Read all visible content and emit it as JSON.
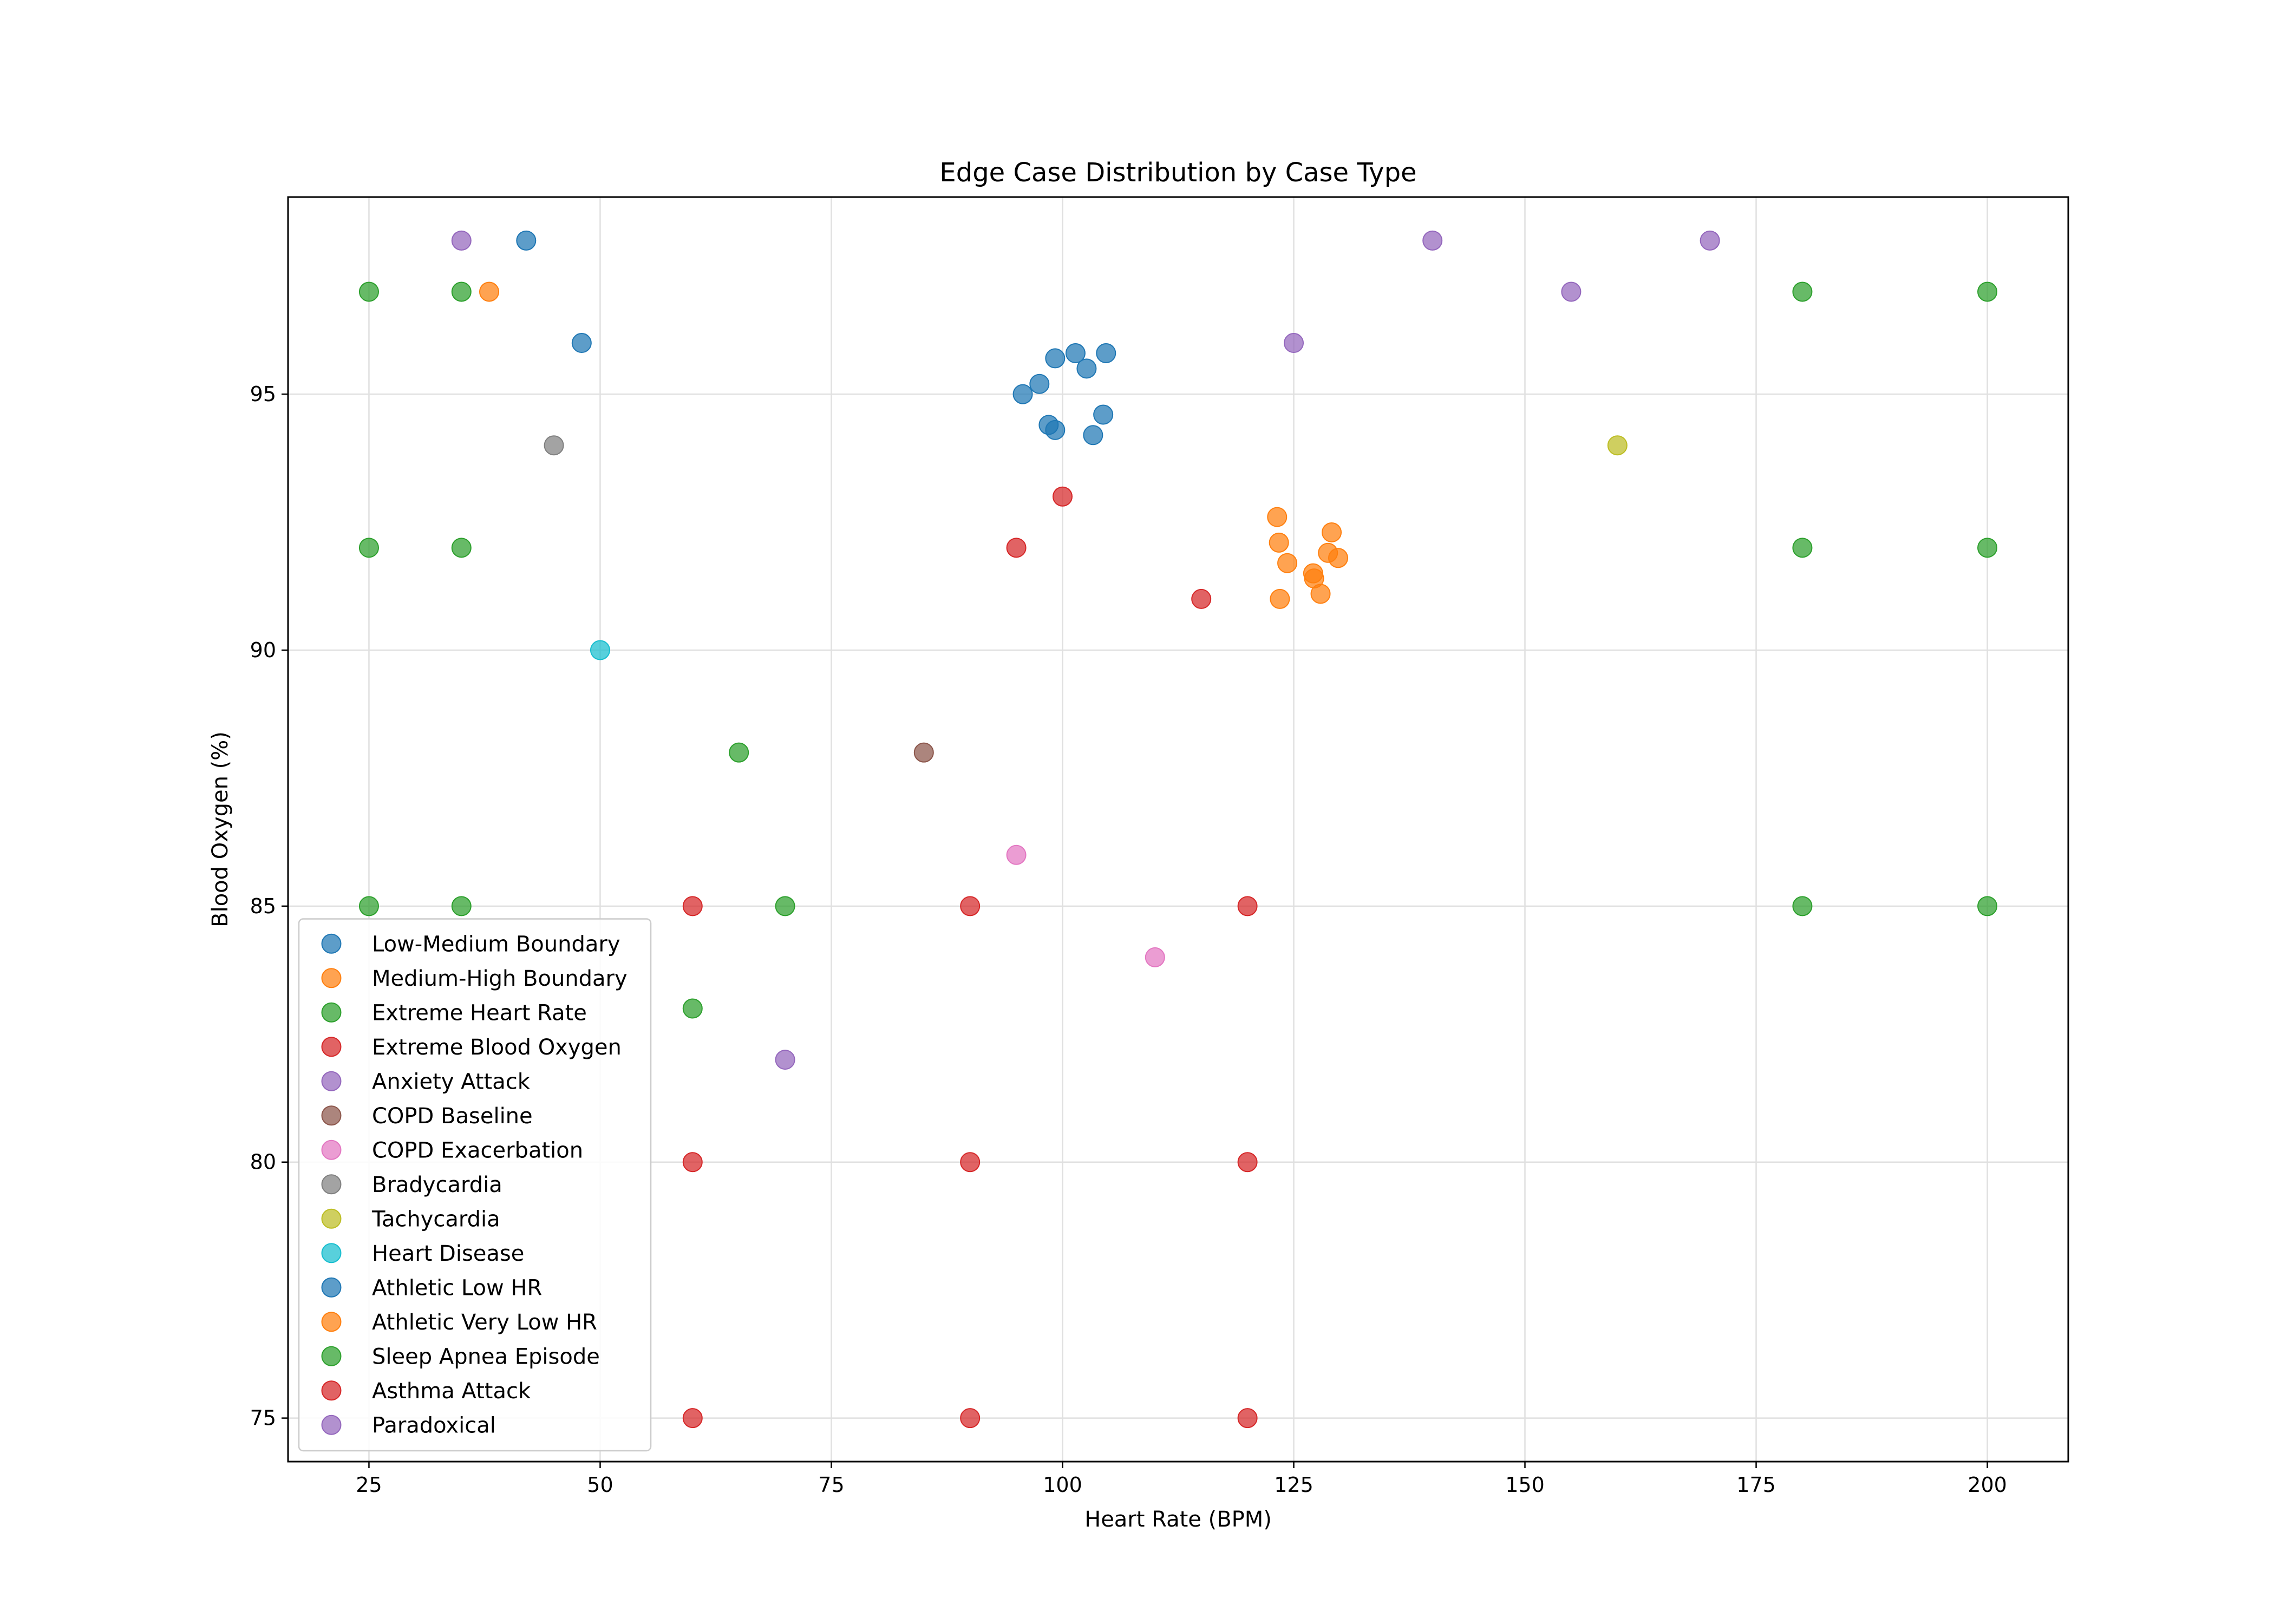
{
  "chart_data": {
    "type": "scatter",
    "title": "Edge Case Distribution by Case Type",
    "xlabel": "Heart Rate (BPM)",
    "ylabel": "Blood Oxygen (%)",
    "xlim": [
      16.25,
      208.75
    ],
    "ylim": [
      74.15,
      98.85
    ],
    "xticks": [
      25,
      50,
      75,
      100,
      125,
      150,
      175,
      200
    ],
    "yticks": [
      75,
      80,
      85,
      90,
      95
    ],
    "grid": true,
    "legend_position": "lower-left",
    "series": [
      {
        "name": "Low-Medium Boundary",
        "color": "#1f77b4",
        "points": [
          [
            95.7,
            95.0
          ],
          [
            97.5,
            95.2
          ],
          [
            98.5,
            94.4
          ],
          [
            99.2,
            94.3
          ],
          [
            99.2,
            95.7
          ],
          [
            101.4,
            95.8
          ],
          [
            102.6,
            95.5
          ],
          [
            103.3,
            94.2
          ],
          [
            104.4,
            94.6
          ],
          [
            104.7,
            95.8
          ]
        ]
      },
      {
        "name": "Medium-High Boundary",
        "color": "#ff7f0e",
        "points": [
          [
            123.2,
            92.6
          ],
          [
            123.4,
            92.1
          ],
          [
            124.3,
            91.7
          ],
          [
            123.5,
            91.0
          ],
          [
            127.1,
            91.5
          ],
          [
            127.2,
            91.4
          ],
          [
            127.9,
            91.1
          ],
          [
            128.7,
            91.9
          ],
          [
            129.1,
            92.3
          ],
          [
            129.8,
            91.8
          ]
        ]
      },
      {
        "name": "Extreme Heart Rate",
        "color": "#2ca02c",
        "points": [
          [
            25,
            97
          ],
          [
            25,
            92
          ],
          [
            25,
            85
          ],
          [
            35,
            97
          ],
          [
            35,
            92
          ],
          [
            35,
            85
          ],
          [
            180,
            97
          ],
          [
            180,
            92
          ],
          [
            180,
            85
          ],
          [
            200,
            97
          ],
          [
            200,
            92
          ],
          [
            200,
            85
          ]
        ]
      },
      {
        "name": "Extreme Blood Oxygen",
        "color": "#d62728",
        "points": [
          [
            60,
            85
          ],
          [
            60,
            80
          ],
          [
            60,
            75
          ],
          [
            90,
            85
          ],
          [
            90,
            80
          ],
          [
            90,
            75
          ],
          [
            120,
            85
          ],
          [
            120,
            80
          ],
          [
            120,
            75
          ]
        ]
      },
      {
        "name": "Anxiety Attack",
        "color": "#9467bd",
        "points": [
          [
            140,
            98
          ],
          [
            155,
            97
          ],
          [
            170,
            98
          ],
          [
            125,
            96
          ]
        ]
      },
      {
        "name": "COPD Baseline",
        "color": "#8c564b",
        "points": [
          [
            85,
            88
          ]
        ]
      },
      {
        "name": "COPD Exacerbation",
        "color": "#e377c2",
        "points": [
          [
            95,
            86
          ],
          [
            110,
            84
          ]
        ]
      },
      {
        "name": "Bradycardia",
        "color": "#7f7f7f",
        "points": [
          [
            45,
            94
          ]
        ]
      },
      {
        "name": "Tachycardia",
        "color": "#bcbd22",
        "points": [
          [
            160,
            94
          ]
        ]
      },
      {
        "name": "Heart Disease",
        "color": "#17becf",
        "points": [
          [
            50,
            90
          ]
        ]
      },
      {
        "name": "Athletic Low HR",
        "color": "#1f77b4",
        "points": [
          [
            42,
            98
          ],
          [
            48,
            96
          ]
        ]
      },
      {
        "name": "Athletic Very Low HR",
        "color": "#ff7f0e",
        "points": [
          [
            38,
            97
          ]
        ]
      },
      {
        "name": "Sleep Apnea Episode",
        "color": "#2ca02c",
        "points": [
          [
            65,
            88
          ],
          [
            60,
            83
          ],
          [
            70,
            85
          ]
        ]
      },
      {
        "name": "Asthma Attack",
        "color": "#d62728",
        "points": [
          [
            95,
            92
          ],
          [
            100,
            93
          ],
          [
            115,
            91
          ]
        ]
      },
      {
        "name": "Paradoxical",
        "color": "#9467bd",
        "points": [
          [
            35,
            98
          ],
          [
            70,
            82
          ]
        ]
      }
    ]
  }
}
